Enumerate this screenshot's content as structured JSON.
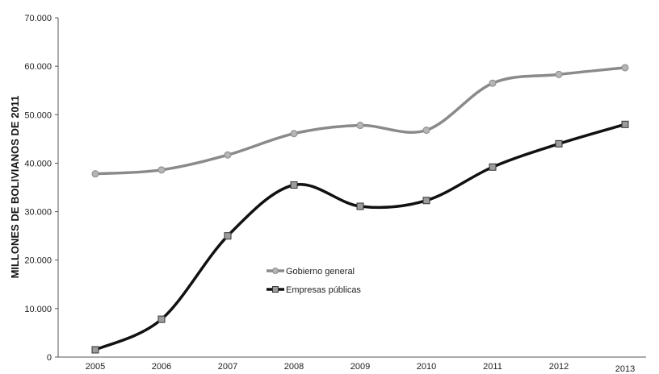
{
  "chart_data": {
    "type": "line",
    "title": "",
    "xlabel": "",
    "ylabel": "MILLONES DE BOLIVIANOS DE 2011",
    "categories": [
      "2005",
      "2006",
      "2007",
      "2008",
      "2009",
      "2010",
      "2011",
      "2012",
      "2013"
    ],
    "yticks": [
      "0",
      "10.000",
      "20.000",
      "30.000",
      "40.000",
      "50.000",
      "60.000",
      "70.000"
    ],
    "ylim": [
      0,
      70000
    ],
    "grid": false,
    "legend_position": "center",
    "series": [
      {
        "name": "Gobierno general",
        "color": "#8a8a8a",
        "marker": "circle",
        "values": [
          37800,
          38600,
          41700,
          46100,
          47800,
          46800,
          56500,
          58300,
          59700
        ]
      },
      {
        "name": "Empresas públicas",
        "color": "#111111",
        "marker": "square",
        "values": [
          1500,
          7800,
          25000,
          35500,
          31100,
          32300,
          39200,
          44000,
          48000
        ]
      }
    ]
  }
}
